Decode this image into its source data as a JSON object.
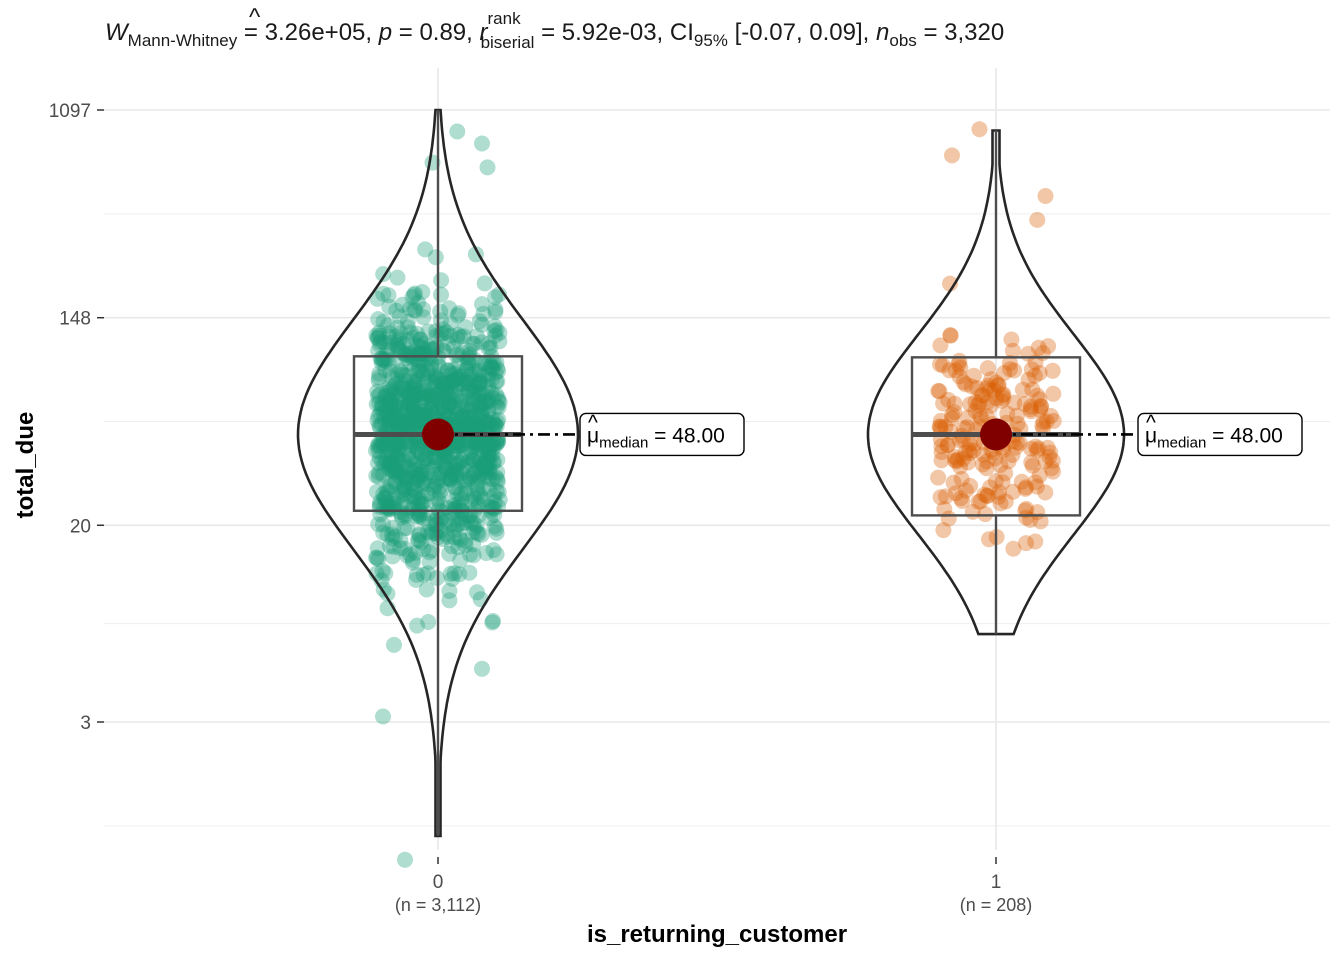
{
  "chart_data": {
    "type": "violin-box-scatter",
    "subtitle": {
      "w_symbol": "W",
      "w_sub": "Mann-Whitney",
      "w_value": " = 3.26e+05, ",
      "p_symbol": "p",
      "p_value": " = 0.89, ",
      "r_symbol": "r",
      "r_hat": "^",
      "r_sup": "rank",
      "r_sub": "biserial",
      "r_value": " = 5.92e-03, ",
      "ci_text": "CI",
      "ci_sub": "95%",
      "ci_value": " [-0.07, 0.09], ",
      "n_symbol": "n",
      "n_sub": "obs",
      "n_value": " = 3,320"
    },
    "xlabel": "is_returning_customer",
    "ylabel": "total_due",
    "y_scale": "log",
    "y_ticks": [
      {
        "label": "1097",
        "value": 1097
      },
      {
        "label": "148",
        "value": 148
      },
      {
        "label": "20",
        "value": 20
      },
      {
        "label": "3",
        "value": 3
      }
    ],
    "ylim": [
      0.4,
      1400
    ],
    "grid": true,
    "groups": [
      {
        "category": "0",
        "n_label": "(n = 3,112)",
        "color": "#1B9E77",
        "box": {
          "q1": 23,
          "median": 48,
          "q3": 102,
          "whisker_low": 1,
          "whisker_high": 1097
        },
        "median_label": {
          "mu": "μ",
          "hat": "^",
          "sub": "median",
          "value": " = 48.00"
        }
      },
      {
        "category": "1",
        "n_label": "(n = 208)",
        "color": "#D95F02",
        "box": {
          "q1": 22,
          "median": 48,
          "q3": 101,
          "whisker_low": 7,
          "whisker_high": 900
        },
        "median_label": {
          "mu": "μ",
          "hat": "^",
          "sub": "median",
          "value": " = 48.00"
        }
      }
    ],
    "colors": {
      "median_point": "#800000",
      "box_line": "#4d4d4d",
      "violin_line": "#262626",
      "grid": "#e8e8e8"
    }
  }
}
